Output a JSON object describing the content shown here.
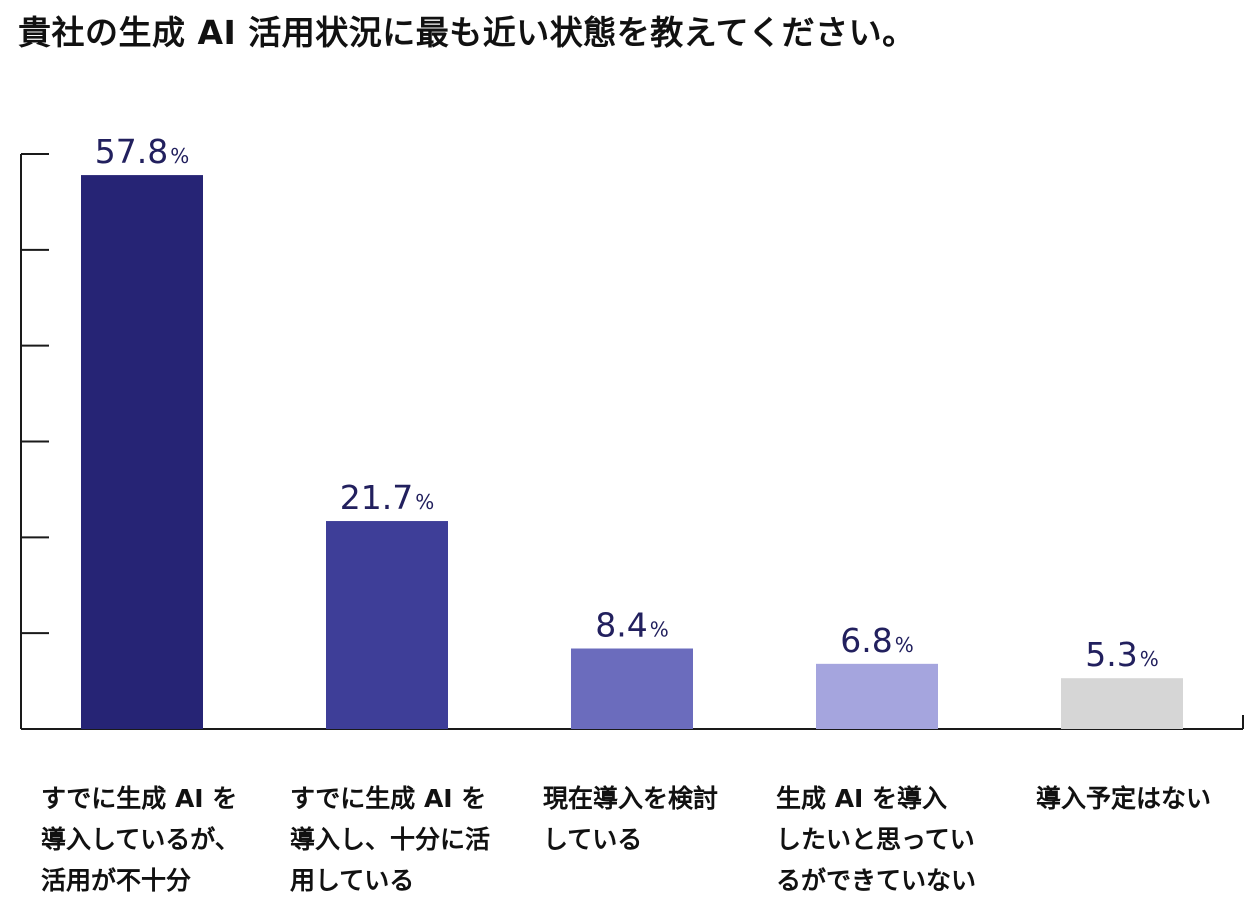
{
  "title": "貴社の生成 AI 活用状況に最も近い状態を教えてください。",
  "colors": {
    "axis": "#1a1a1a",
    "label_text": "#22205e",
    "bars": [
      "#262475",
      "#3e3e98",
      "#6b6cbd",
      "#a5a5de",
      "#d6d6d6"
    ]
  },
  "chart_data": {
    "type": "bar",
    "title": "貴社の生成 AI 活用状況に最も近い状態を教えてください。",
    "xlabel": "",
    "ylabel": "",
    "ylim": [
      0,
      60
    ],
    "unit": "%",
    "grid": false,
    "categories": [
      [
        "すでに生成 AI を",
        "導入しているが、",
        "活用が不十分"
      ],
      [
        "すでに生成 AI を",
        "導入し、十分に活",
        "用している"
      ],
      [
        "現在導入を検討",
        "している"
      ],
      [
        "生成 AI を導入",
        "したいと思ってい",
        "るができていない"
      ],
      [
        "導入予定はない"
      ]
    ],
    "values": [
      57.8,
      21.7,
      8.4,
      6.8,
      5.3
    ],
    "value_labels": [
      "57.8",
      "21.7",
      "8.4",
      "6.8",
      "5.3"
    ]
  }
}
